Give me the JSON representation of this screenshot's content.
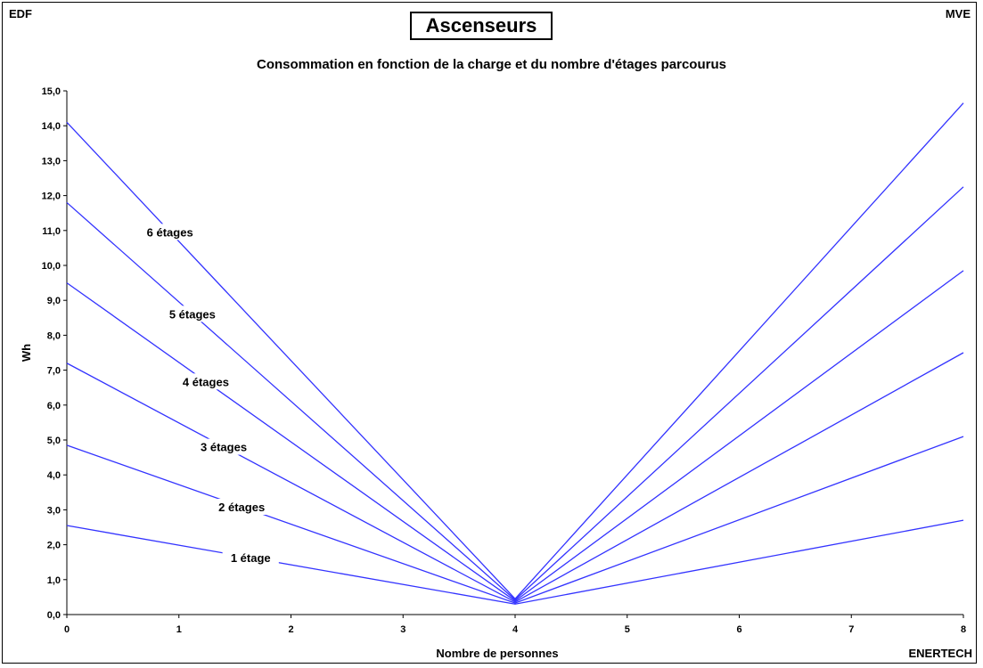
{
  "header": {
    "left": "EDF",
    "right": "MVE",
    "title": "Ascenseurs",
    "subtitle": "Consommation en fonction de la charge et du nombre d'étages parcourus",
    "footer_right": "ENERTECH"
  },
  "chart_data": {
    "type": "line",
    "title": "Ascenseurs",
    "subtitle": "Consommation en fonction de la charge et du nombre d'étages parcourus",
    "xlabel": "Nombre de personnes",
    "ylabel": "Wh",
    "xlim": [
      0,
      8
    ],
    "ylim": [
      0,
      15
    ],
    "x_ticks": [
      "0",
      "1",
      "2",
      "3",
      "4",
      "5",
      "6",
      "7",
      "8"
    ],
    "y_ticks": [
      "0,0",
      "1,0",
      "2,0",
      "3,0",
      "4,0",
      "5,0",
      "6,0",
      "7,0",
      "8,0",
      "9,0",
      "10,0",
      "11,0",
      "12,0",
      "13,0",
      "14,0",
      "15,0"
    ],
    "grid": false,
    "line_color": "#3333ff",
    "series": [
      {
        "name": "1 étage",
        "x": [
          0,
          4,
          8
        ],
        "y": [
          2.55,
          0.3,
          2.7
        ]
      },
      {
        "name": "2 étages",
        "x": [
          0,
          4,
          8
        ],
        "y": [
          4.85,
          0.33,
          5.1
        ]
      },
      {
        "name": "3 étages",
        "x": [
          0,
          4,
          8
        ],
        "y": [
          7.2,
          0.36,
          7.5
        ]
      },
      {
        "name": "4 étages",
        "x": [
          0,
          4,
          8
        ],
        "y": [
          9.5,
          0.39,
          9.85
        ]
      },
      {
        "name": "5 étages",
        "x": [
          0,
          4,
          8
        ],
        "y": [
          11.8,
          0.42,
          12.25
        ]
      },
      {
        "name": "6 étages",
        "x": [
          0,
          4,
          8
        ],
        "y": [
          14.1,
          0.45,
          14.65
        ]
      }
    ]
  }
}
